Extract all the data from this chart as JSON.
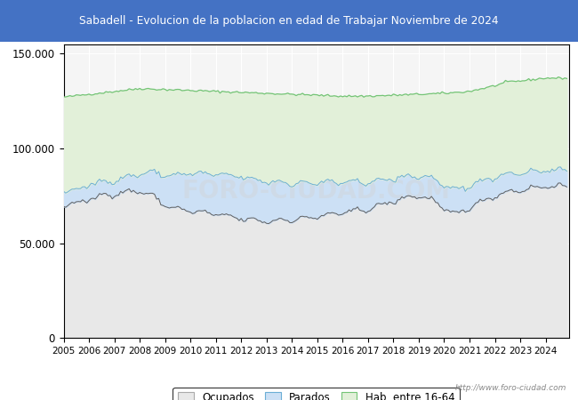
{
  "title": "Sabadell - Evolucion de la poblacion en edad de Trabajar Noviembre de 2024",
  "title_bg": "#4472c4",
  "title_color": "white",
  "ylim": [
    0,
    155000
  ],
  "yticks": [
    0,
    50000,
    100000,
    150000
  ],
  "ytick_labels": [
    "0",
    "50.000",
    "100.000",
    "150.000"
  ],
  "url_text": "http://www.foro-ciudad.com",
  "watermark": "FORO-CIUDAD.COM",
  "legend_labels": [
    "Ocupados",
    "Parados",
    "Hab. entre 16-64"
  ],
  "color_ocupados": "#e8e8e8",
  "color_parados": "#cce0f5",
  "color_hab": "#e2f0d9",
  "line_color_ocupados": "#606060",
  "line_color_parados": "#6baed6",
  "line_color_hab": "#74c476",
  "bg_color": "white",
  "plot_bg": "#f5f5f5",
  "grid_color": "#ffffff"
}
